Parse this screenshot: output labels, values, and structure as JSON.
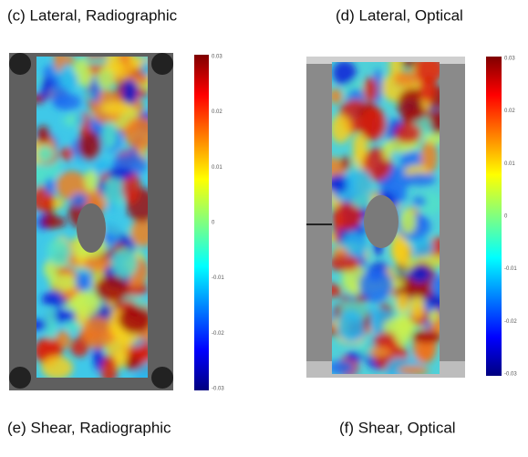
{
  "panels": [
    {
      "caption": "(c) Lateral, Radiographic",
      "colorbar_ticks": [
        "0.03",
        "0.02",
        "0.01",
        "0",
        "-0.01",
        "-0.02",
        "-0.03"
      ]
    },
    {
      "caption": "(d) Lateral, Optical",
      "colorbar_ticks": [
        "0.03",
        "0.02",
        "0.01",
        "0",
        "-0.01",
        "-0.02",
        "-0.03"
      ]
    }
  ],
  "bottom_captions": [
    "(e) Shear, Radiographic",
    "(f) Shear, Optical"
  ]
}
